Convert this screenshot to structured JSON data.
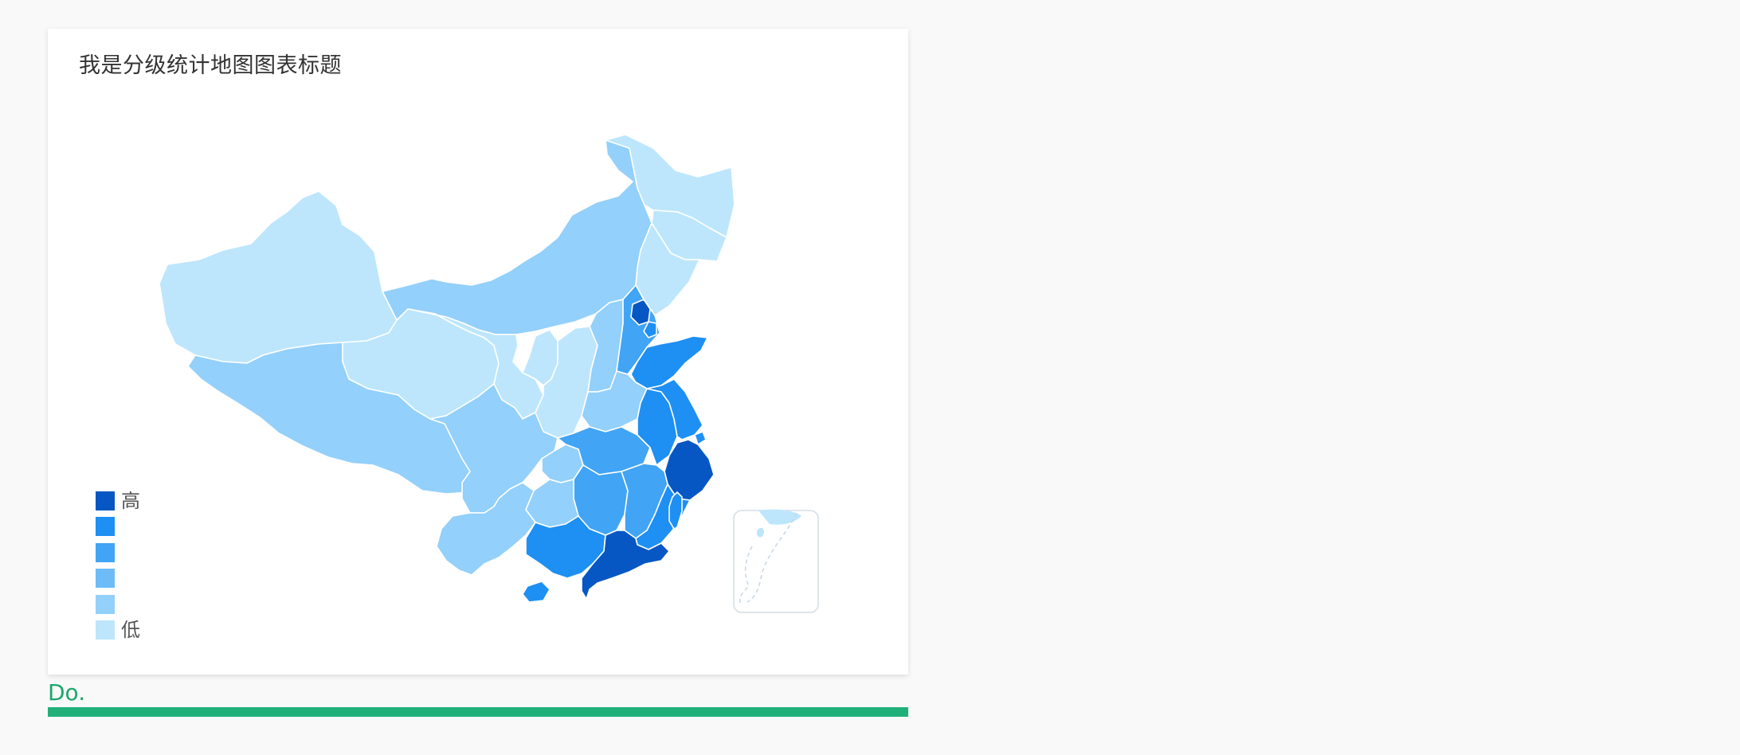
{
  "chart_data": {
    "type": "choropleth-map",
    "title": "我是分级统计地图图表标题",
    "legend": {
      "position": "bottom-left",
      "high_label": "高",
      "low_label": "低",
      "levels": [
        {
          "level": 6,
          "color": "#0657c4"
        },
        {
          "level": 5,
          "color": "#1e8ff3"
        },
        {
          "level": 4,
          "color": "#41a4f5"
        },
        {
          "level": 3,
          "color": "#6dbcf8"
        },
        {
          "level": 2,
          "color": "#93d0fb"
        },
        {
          "level": 1,
          "color": "#bde6fc"
        }
      ]
    },
    "regions": [
      {
        "name": "Heilongjiang",
        "level": 1
      },
      {
        "name": "Jilin",
        "level": 1
      },
      {
        "name": "Liaoning",
        "level": 1
      },
      {
        "name": "Inner Mongolia",
        "level": 2
      },
      {
        "name": "Xinjiang",
        "level": 1
      },
      {
        "name": "Tibet",
        "level": 2
      },
      {
        "name": "Qinghai",
        "level": 1
      },
      {
        "name": "Gansu",
        "level": 1
      },
      {
        "name": "Ningxia",
        "level": 1
      },
      {
        "name": "Shaanxi",
        "level": 1
      },
      {
        "name": "Shanxi",
        "level": 2
      },
      {
        "name": "Hebei",
        "level": 4
      },
      {
        "name": "Beijing",
        "level": 6
      },
      {
        "name": "Tianjin",
        "level": 5
      },
      {
        "name": "Shandong",
        "level": 5
      },
      {
        "name": "Henan",
        "level": 2
      },
      {
        "name": "Sichuan",
        "level": 2
      },
      {
        "name": "Chongqing",
        "level": 2
      },
      {
        "name": "Hubei",
        "level": 4
      },
      {
        "name": "Anhui",
        "level": 5
      },
      {
        "name": "Jiangsu",
        "level": 5
      },
      {
        "name": "Shanghai",
        "level": 5
      },
      {
        "name": "Zhejiang",
        "level": 6
      },
      {
        "name": "Hunan",
        "level": 4
      },
      {
        "name": "Jiangxi",
        "level": 4
      },
      {
        "name": "Fujian",
        "level": 5
      },
      {
        "name": "Guizhou",
        "level": 2
      },
      {
        "name": "Yunnan",
        "level": 2
      },
      {
        "name": "Guangxi",
        "level": 5
      },
      {
        "name": "Guangdong",
        "level": 6
      },
      {
        "name": "Hainan",
        "level": 5
      },
      {
        "name": "Taiwan",
        "level": 5
      }
    ],
    "inset": "South China Sea"
  },
  "footer": {
    "caption": "Do."
  }
}
